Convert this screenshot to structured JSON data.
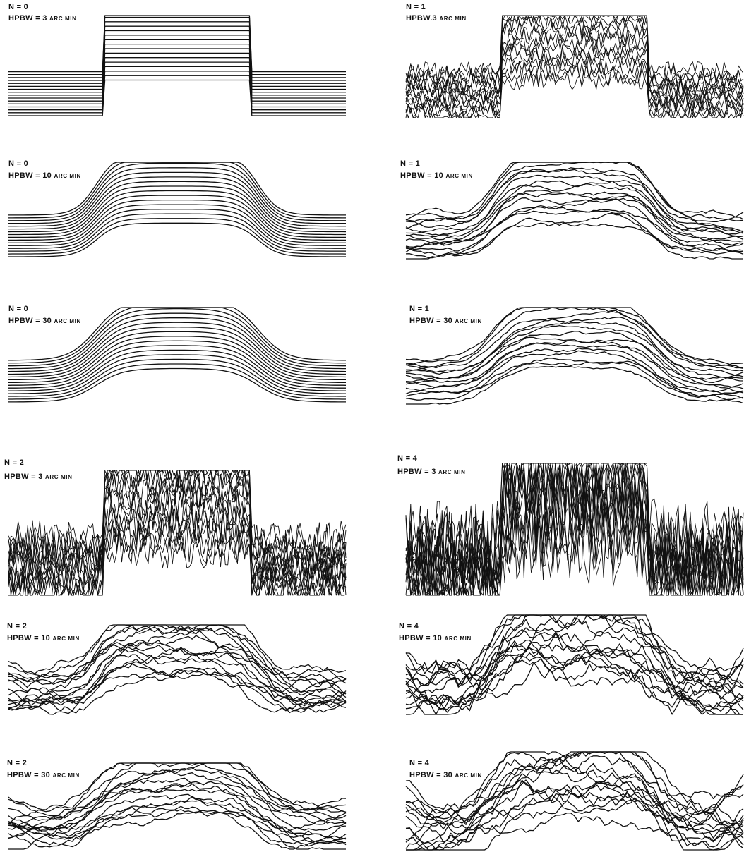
{
  "colors": {
    "ink": "#111111",
    "background": "#ffffff"
  },
  "panels": [
    {
      "n_label": "N = 0",
      "hpbw_label": "HPBW = 3",
      "unit_label": "ARC MIN",
      "noise": 0,
      "beam": 3
    },
    {
      "n_label": "N = 1",
      "hpbw_label": "HPBW.3",
      "unit_label": "ARC MIN",
      "noise": 1,
      "beam": 3
    },
    {
      "n_label": "N = 0",
      "hpbw_label": "HPBW = 10",
      "unit_label": "ARC MIN",
      "noise": 0,
      "beam": 10
    },
    {
      "n_label": "N = 1",
      "hpbw_label": "HPBW = 10",
      "unit_label": "ARC MIN",
      "noise": 1,
      "beam": 10
    },
    {
      "n_label": "N = 0",
      "hpbw_label": "HPBW = 30",
      "unit_label": "ARC MIN",
      "noise": 0,
      "beam": 30
    },
    {
      "n_label": "N = 1",
      "hpbw_label": "HPBW = 30",
      "unit_label": "ARC MIN",
      "noise": 1,
      "beam": 30
    },
    {
      "n_label": "N = 2",
      "hpbw_label": "HPBW = 3",
      "unit_label": "ARC MIN",
      "noise": 2,
      "beam": 3
    },
    {
      "n_label": "N = 4",
      "hpbw_label": "HPBW = 3",
      "unit_label": "ARC MIN",
      "noise": 4,
      "beam": 3
    },
    {
      "n_label": "N = 2",
      "hpbw_label": "HPBW = 10",
      "unit_label": "ARC MIN",
      "noise": 2,
      "beam": 10
    },
    {
      "n_label": "N = 4",
      "hpbw_label": "HPBW = 10",
      "unit_label": "ARC MIN",
      "noise": 4,
      "beam": 10
    },
    {
      "n_label": "N = 2",
      "hpbw_label": "HPBW = 30",
      "unit_label": "ARC MIN",
      "noise": 2,
      "beam": 30
    },
    {
      "n_label": "N = 4",
      "hpbw_label": "HPBW = 30",
      "unit_label": "ARC MIN",
      "noise": 4,
      "beam": 30
    }
  ]
}
